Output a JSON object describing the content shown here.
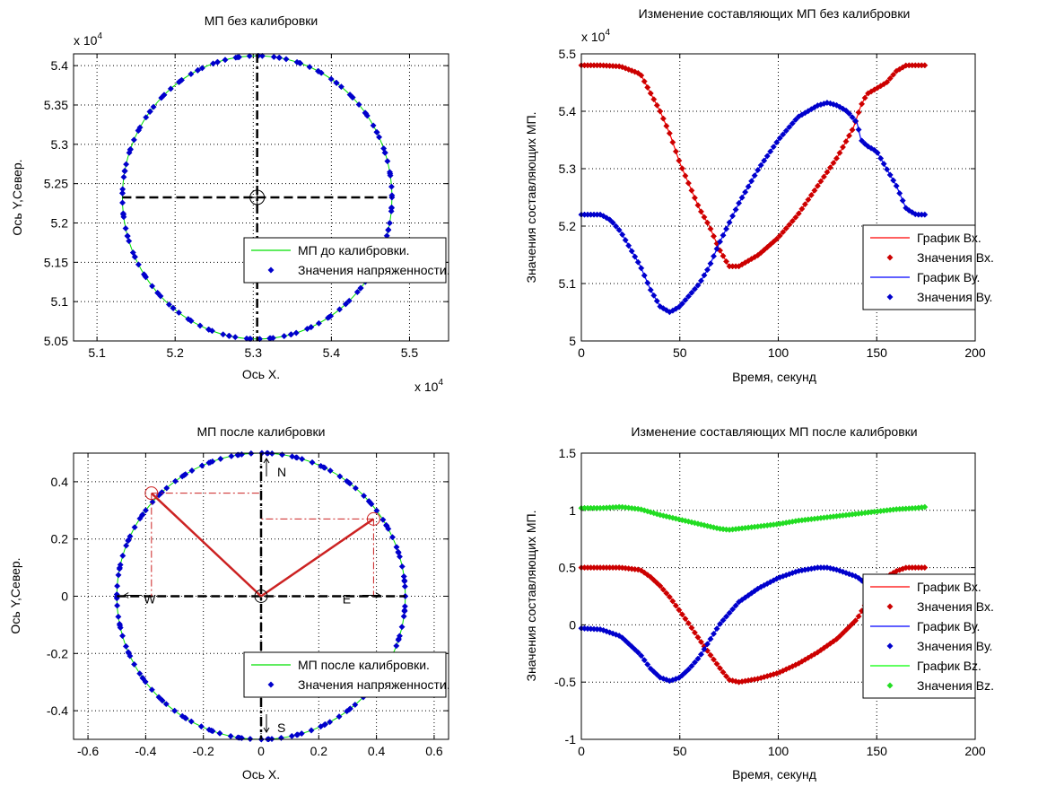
{
  "chart_data": [
    {
      "id": "p1",
      "type": "scatter",
      "title": "МП без калибровки",
      "xlabel": "Ось Х.",
      "ylabel": "Ось Y,Север.",
      "x_exponent": "x 10",
      "y_exponent": "x 10",
      "exponent_power": "4",
      "xlim": [
        5.07,
        5.55
      ],
      "ylim": [
        5.05,
        5.415
      ],
      "xticks": [
        5.1,
        5.2,
        5.3,
        5.4,
        5.5
      ],
      "yticks": [
        5.05,
        5.1,
        5.15,
        5.2,
        5.25,
        5.3,
        5.35,
        5.4
      ],
      "xtick_labels": [
        "5.1",
        "5.2",
        "5.3",
        "5.4",
        "5.5"
      ],
      "ytick_labels": [
        "5.05",
        "5.1",
        "5.15",
        "5.2",
        "5.25",
        "5.3",
        "5.35",
        "5.4"
      ],
      "circle": {
        "center": [
          5.305,
          5.2325
        ],
        "rx": 0.1725,
        "ry": 0.18
      },
      "crosshair": {
        "x": 5.305,
        "y": 5.2325
      },
      "grid": true,
      "legend": {
        "position": "lower-right",
        "entries": [
          "МП до калибровки.",
          "Значения напряженности."
        ]
      },
      "series": [
        {
          "name": "МП до калибровки.",
          "color": "#00e000",
          "style": "line"
        },
        {
          "name": "Значения напряженности.",
          "color": "#0000cc",
          "style": "markers"
        }
      ]
    },
    {
      "id": "p2",
      "type": "line",
      "title": "Изменение составляющих МП без калибровки",
      "xlabel": "Время, секунд",
      "ylabel": "Значения составляющих МП.",
      "y_exponent": "x 10",
      "exponent_power": "4",
      "xlim": [
        0,
        200
      ],
      "ylim": [
        5.0,
        5.5
      ],
      "xticks": [
        0,
        50,
        100,
        150,
        200
      ],
      "yticks": [
        5.0,
        5.1,
        5.2,
        5.3,
        5.4,
        5.5
      ],
      "xtick_labels": [
        "0",
        "50",
        "100",
        "150",
        "200"
      ],
      "ytick_labels": [
        "5",
        "5.1",
        "5.2",
        "5.3",
        "5.4",
        "5.5"
      ],
      "grid": true,
      "legend": {
        "position": "lower-right",
        "entries": [
          "График Вх.",
          "Значения Вх.",
          "График Ву.",
          "Значения Ву."
        ]
      },
      "series": [
        {
          "name": "График Вх.",
          "color": "#ff0000",
          "marker_color": "#cc0000",
          "x": [
            0,
            10,
            20,
            30,
            40,
            45,
            50,
            55,
            60,
            65,
            70,
            75,
            80,
            90,
            100,
            110,
            120,
            130,
            138,
            142,
            145,
            150,
            155,
            160,
            165,
            170,
            175
          ],
          "y": [
            5.48,
            5.48,
            5.478,
            5.465,
            5.4,
            5.36,
            5.31,
            5.27,
            5.23,
            5.2,
            5.16,
            5.13,
            5.13,
            5.15,
            5.18,
            5.22,
            5.27,
            5.32,
            5.37,
            5.41,
            5.43,
            5.44,
            5.45,
            5.47,
            5.48,
            5.48,
            5.48
          ]
        },
        {
          "name": "График Ву.",
          "color": "#0000ff",
          "marker_color": "#0000cc",
          "x": [
            0,
            10,
            15,
            20,
            25,
            30,
            35,
            40,
            45,
            50,
            55,
            60,
            65,
            70,
            80,
            90,
            100,
            110,
            120,
            125,
            130,
            135,
            140,
            142,
            145,
            150,
            155,
            160,
            165,
            170,
            175
          ],
          "y": [
            5.22,
            5.22,
            5.21,
            5.19,
            5.16,
            5.13,
            5.09,
            5.06,
            5.05,
            5.06,
            5.08,
            5.1,
            5.13,
            5.17,
            5.24,
            5.3,
            5.35,
            5.39,
            5.41,
            5.415,
            5.41,
            5.4,
            5.38,
            5.35,
            5.34,
            5.33,
            5.3,
            5.27,
            5.23,
            5.22,
            5.22
          ]
        }
      ]
    },
    {
      "id": "p3",
      "type": "scatter",
      "title": "МП после калибровки",
      "xlabel": "Ось Х.",
      "ylabel": "Ось Y,Север.",
      "xlim": [
        -0.65,
        0.65
      ],
      "ylim": [
        -0.5,
        0.5
      ],
      "xticks": [
        -0.6,
        -0.4,
        -0.2,
        0,
        0.2,
        0.4,
        0.6
      ],
      "yticks": [
        -0.4,
        -0.2,
        0,
        0.2,
        0.4
      ],
      "xtick_labels": [
        "-0.6",
        "-0.4",
        "-0.2",
        "0",
        "0.2",
        "0.4",
        "0.6"
      ],
      "ytick_labels": [
        "-0.4",
        "-0.2",
        "0",
        "0.2",
        "0.4"
      ],
      "circle": {
        "center": [
          0,
          0
        ],
        "r": 0.5
      },
      "vectors": [
        {
          "from": [
            0,
            0
          ],
          "to": [
            -0.38,
            0.36
          ],
          "color": "#cc2222"
        },
        {
          "from": [
            0,
            0
          ],
          "to": [
            0.39,
            0.27
          ],
          "color": "#cc2222"
        }
      ],
      "compass": {
        "north": "N",
        "south": "S",
        "west": "W",
        "east": "E"
      },
      "grid": true,
      "legend": {
        "position": "lower-right",
        "entries": [
          "МП после калибровки.",
          "Значения напряженности."
        ]
      },
      "series": [
        {
          "name": "МП после калибровки.",
          "color": "#00e000",
          "style": "line"
        },
        {
          "name": "Значения напряженности.",
          "color": "#0000cc",
          "style": "markers"
        }
      ]
    },
    {
      "id": "p4",
      "type": "line",
      "title": "Изменение составляющих МП после калибровки",
      "xlabel": "Время, секунд",
      "ylabel": "Значения составляющих МП.",
      "xlim": [
        0,
        200
      ],
      "ylim": [
        -1,
        1.5
      ],
      "xticks": [
        0,
        50,
        100,
        150,
        200
      ],
      "yticks": [
        -1,
        -0.5,
        0,
        0.5,
        1,
        1.5
      ],
      "xtick_labels": [
        "0",
        "50",
        "100",
        "150",
        "200"
      ],
      "ytick_labels": [
        "-1",
        "-0.5",
        "0",
        "0.5",
        "1",
        "1.5"
      ],
      "grid": true,
      "legend": {
        "position": "lower-right",
        "entries": [
          "График Вх.",
          "Значения Вх.",
          "График Ву.",
          "Значения Ву.",
          "График Bz.",
          "Значения Bz."
        ]
      },
      "series": [
        {
          "name": "График Вх.",
          "color": "#ff0000",
          "marker_color": "#cc0000",
          "x": [
            0,
            10,
            20,
            30,
            35,
            40,
            45,
            50,
            55,
            60,
            65,
            70,
            75,
            80,
            90,
            100,
            110,
            120,
            130,
            140,
            145,
            150,
            155,
            160,
            165,
            170,
            175
          ],
          "y": [
            0.5,
            0.5,
            0.5,
            0.48,
            0.42,
            0.34,
            0.24,
            0.12,
            0.0,
            -0.13,
            -0.25,
            -0.37,
            -0.48,
            -0.5,
            -0.47,
            -0.42,
            -0.34,
            -0.24,
            -0.12,
            0.05,
            0.2,
            0.32,
            0.42,
            0.47,
            0.5,
            0.5,
            0.5
          ]
        },
        {
          "name": "График Ву.",
          "color": "#0000ff",
          "marker_color": "#0000cc",
          "x": [
            0,
            10,
            20,
            30,
            35,
            40,
            45,
            50,
            55,
            60,
            65,
            70,
            80,
            90,
            100,
            110,
            120,
            125,
            130,
            140,
            145,
            150,
            155,
            160,
            165,
            170,
            175
          ],
          "y": [
            -0.03,
            -0.04,
            -0.1,
            -0.26,
            -0.38,
            -0.46,
            -0.49,
            -0.46,
            -0.38,
            -0.28,
            -0.14,
            0.0,
            0.2,
            0.32,
            0.41,
            0.47,
            0.5,
            0.5,
            0.48,
            0.42,
            0.35,
            0.34,
            0.3,
            0.2,
            0.08,
            0.02,
            0.0
          ]
        },
        {
          "name": "График Bz.",
          "color": "#00ff00",
          "marker_color": "#22dd22",
          "x": [
            0,
            10,
            20,
            30,
            40,
            50,
            60,
            70,
            75,
            80,
            90,
            100,
            110,
            120,
            130,
            140,
            150,
            160,
            170,
            175
          ],
          "y": [
            1.02,
            1.02,
            1.03,
            1.01,
            0.96,
            0.92,
            0.88,
            0.84,
            0.83,
            0.84,
            0.86,
            0.88,
            0.91,
            0.93,
            0.95,
            0.97,
            0.99,
            1.01,
            1.02,
            1.03
          ]
        }
      ]
    }
  ]
}
